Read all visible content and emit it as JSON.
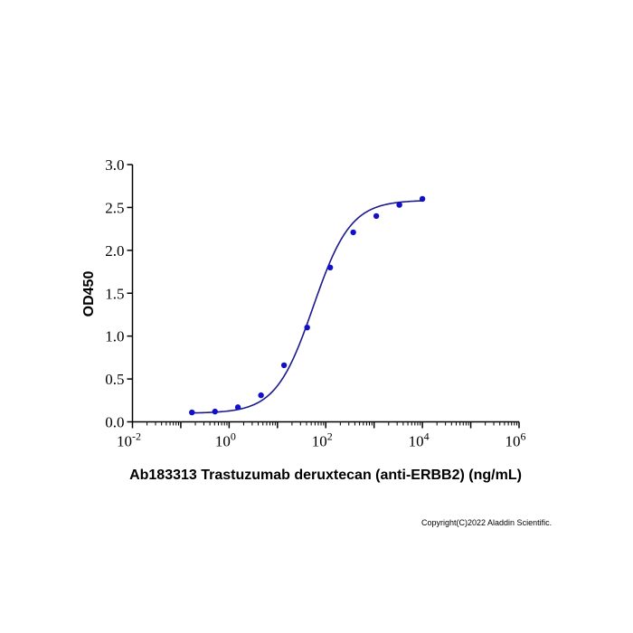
{
  "chart_data": {
    "type": "line",
    "title": "",
    "xlabel": "Ab183313 Trastuzumab deruxtecan (anti-ERBB2) (ng/mL)",
    "ylabel": "OD450",
    "x_scale": "log",
    "xlim": [
      0.01,
      1000000
    ],
    "ylim": [
      0,
      3.0
    ],
    "x_tick_labels": [
      {
        "base": "10",
        "exp": "-2"
      },
      {
        "base": "10",
        "exp": "0"
      },
      {
        "base": "10",
        "exp": "2"
      },
      {
        "base": "10",
        "exp": "4"
      },
      {
        "base": "10",
        "exp": "6"
      }
    ],
    "y_tick_labels": [
      "0.0",
      "0.5",
      "1.0",
      "1.5",
      "2.0",
      "2.5",
      "3.0"
    ],
    "grid": false,
    "series": [
      {
        "x": [
          0.17,
          0.51,
          1.52,
          4.57,
          13.7,
          41.2,
          123.5,
          370.4,
          1111.1,
          3333.3,
          10000
        ],
        "y": [
          0.11,
          0.12,
          0.17,
          0.31,
          0.66,
          1.1,
          1.8,
          2.21,
          2.4,
          2.53,
          2.6
        ],
        "color": "#1010c8",
        "fit": "4PL",
        "fit_color": "#1a1a8c"
      }
    ]
  },
  "copyright": "Copyright(C)2022 Aladdin Scientific."
}
